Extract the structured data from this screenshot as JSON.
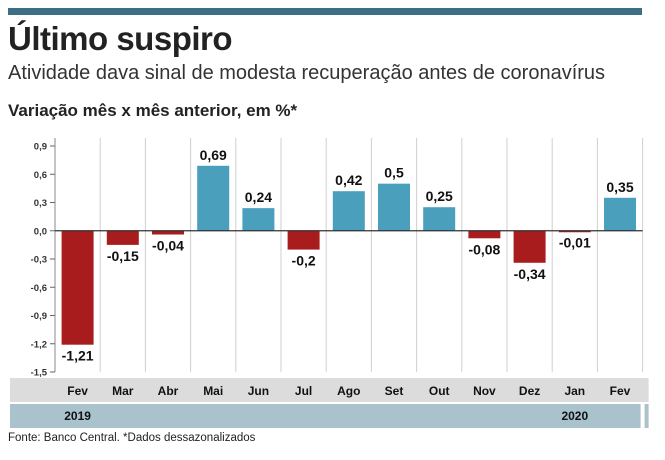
{
  "header": {
    "title": "Último suspiro",
    "subtitle": "Atividade dava sinal de modesta recuperação antes de coronavírus",
    "section_label": "Variação mês x mês anterior, em %*"
  },
  "footer": {
    "source": "Fonte: Banco Central. *Dados dessazonalizados"
  },
  "colors": {
    "positive": "#4a9fbd",
    "negative": "#a81c1d",
    "month_band": "#dcdcdc",
    "year_band": "#a9c2cc",
    "rule": "#3d6f84"
  },
  "chart_data": {
    "type": "bar",
    "title": "Variação mês x mês anterior, em %*",
    "categories": [
      "Fev",
      "Mar",
      "Abr",
      "Mai",
      "Jun",
      "Jul",
      "Ago",
      "Set",
      "Out",
      "Nov",
      "Dez",
      "Jan",
      "Fev"
    ],
    "values": [
      -1.21,
      -0.15,
      -0.04,
      0.69,
      0.24,
      -0.2,
      0.42,
      0.5,
      0.25,
      -0.08,
      -0.34,
      -0.01,
      0.35
    ],
    "value_labels": [
      "-1,21",
      "-0,15",
      "-0,04",
      "0,69",
      "0,24",
      "-0,2",
      "0,42",
      "0,5",
      "0,25",
      "-0,08",
      "-0,34",
      "-0,01",
      "0,35"
    ],
    "years": [
      {
        "label": "2019",
        "start_index": 0
      },
      {
        "label": "2020",
        "start_index": 11
      }
    ],
    "yticks": [
      0.9,
      0.6,
      0.3,
      0.0,
      -0.3,
      -0.6,
      -0.9,
      -1.2,
      -1.5
    ],
    "ytick_labels": [
      "0,9",
      "0,6",
      "0,3",
      "0,0",
      "-0,3",
      "-0,6",
      "-0,9",
      "-1,2",
      "-1,5"
    ],
    "ylim": [
      -1.5,
      0.9
    ],
    "xlabel": "",
    "ylabel": ""
  }
}
